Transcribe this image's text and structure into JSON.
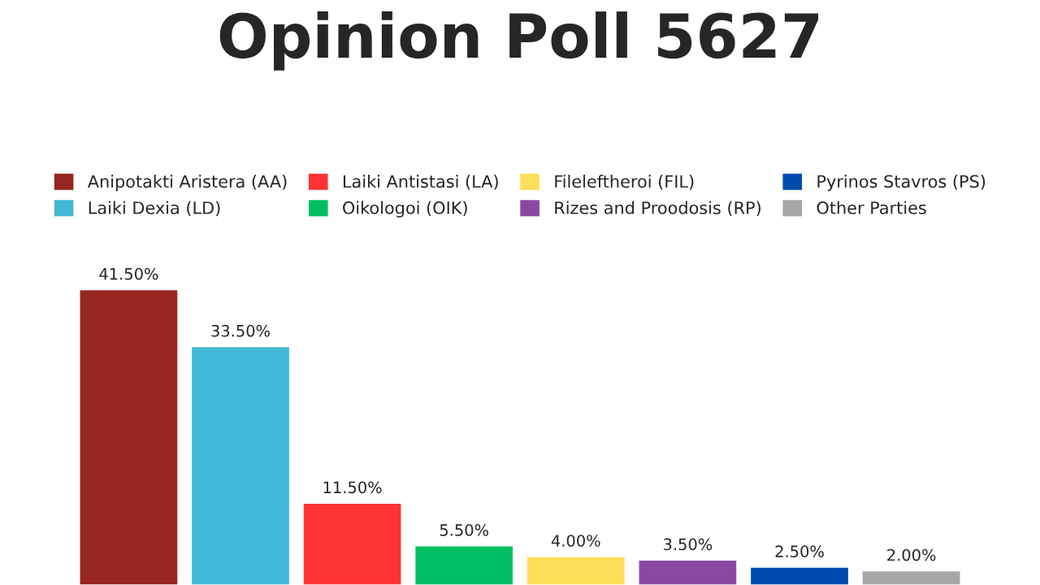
{
  "chart_data": {
    "type": "bar",
    "title": "Opinion Poll 5627",
    "categories": [
      null,
      null,
      null,
      null,
      null,
      null,
      null,
      null
    ],
    "series": [
      {
        "name": "Anipotakti Aristera (AA)",
        "color": "#96261f",
        "values": [
          41.5,
          null,
          null,
          null,
          null,
          null,
          null,
          null
        ],
        "value_labels": [
          "41.50%",
          null,
          null,
          null,
          null,
          null,
          null,
          null
        ]
      },
      {
        "name": "Laiki Dexia (LD)",
        "color": "#42b8d8",
        "values": [
          null,
          33.5,
          null,
          null,
          null,
          null,
          null,
          null
        ],
        "value_labels": [
          null,
          "33.50%",
          null,
          null,
          null,
          null,
          null,
          null
        ]
      },
      {
        "name": "Laiki Antistasi (LA)",
        "color": "#ff3333",
        "values": [
          null,
          null,
          11.5,
          null,
          null,
          null,
          null,
          null
        ],
        "value_labels": [
          null,
          null,
          "11.50%",
          null,
          null,
          null,
          null,
          null
        ]
      },
      {
        "name": "Oikologoi (OIK)",
        "color": "#00bf63",
        "values": [
          null,
          null,
          null,
          5.5,
          null,
          null,
          null,
          null
        ],
        "value_labels": [
          null,
          null,
          null,
          "5.50%",
          null,
          null,
          null,
          null
        ]
      },
      {
        "name": "Fileleftheroi (FIL)",
        "color": "#ffde59",
        "values": [
          null,
          null,
          null,
          null,
          4.0,
          null,
          null,
          null
        ],
        "value_labels": [
          null,
          null,
          null,
          null,
          "4.00%",
          null,
          null,
          null
        ]
      },
      {
        "name": "Rizes and Proodosis (RP)",
        "color": "#8a49a0",
        "values": [
          null,
          null,
          null,
          null,
          null,
          3.5,
          null,
          null
        ],
        "value_labels": [
          null,
          null,
          null,
          null,
          null,
          "3.50%",
          null,
          null
        ]
      },
      {
        "name": "Pyrinos Stavros (PS)",
        "color": "#004aad",
        "values": [
          null,
          null,
          null,
          null,
          null,
          null,
          2.5,
          null
        ],
        "value_labels": [
          null,
          null,
          null,
          null,
          null,
          null,
          "2.50%",
          null
        ]
      },
      {
        "name": "Other Parties",
        "color": "#a6a6a6",
        "values": [
          null,
          null,
          null,
          null,
          null,
          null,
          null,
          2.0
        ],
        "value_labels": [
          null,
          null,
          null,
          null,
          null,
          null,
          null,
          "2.00%"
        ]
      }
    ],
    "stacked": true,
    "legend": "top",
    "grid": false,
    "tick_labels": false
  }
}
